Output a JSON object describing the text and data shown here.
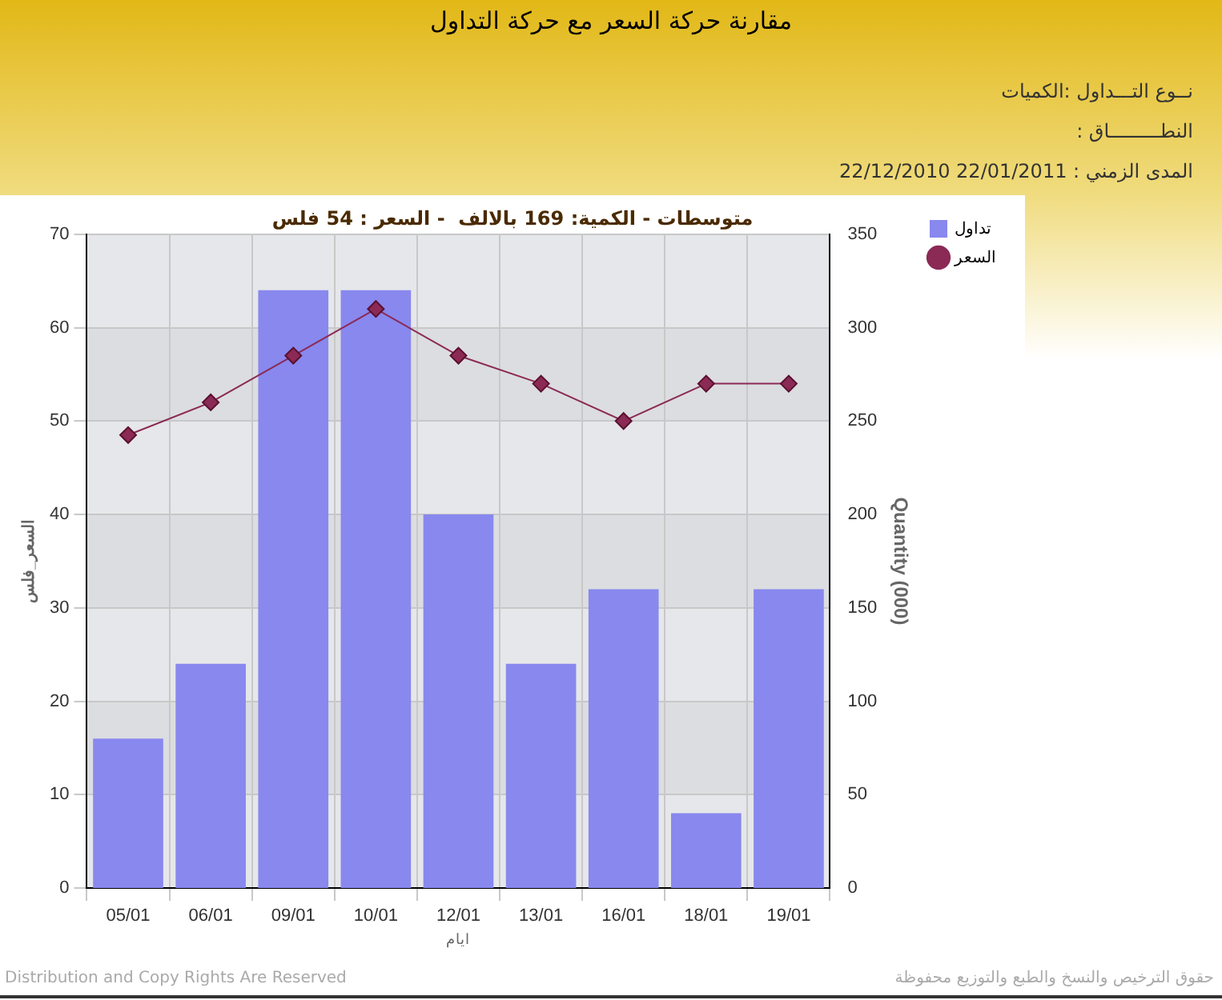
{
  "chart_data": {
    "type": "bar",
    "title": "مقارنة حركة السعر مع حركة التداول",
    "subtitle": "متوسطات - الكمية: 169 بالالف  - السعر : 54 فلس",
    "annotations": [
      "نــوع التـــداول :الكميات",
      "النطـــــــــاق :",
      "المدى الزمني :  22/01/2011 22/12/2010",
      "Distribution and Copy Rights Are Reserved",
      "حقوق الترخيص والنسخ والطبع والتوزيع محفوظة"
    ],
    "xlabel": "ايام",
    "ylabel": "السعر_فلس",
    "y2label": "Quantity (000)",
    "categories": [
      "05/01",
      "06/01",
      "09/01",
      "10/01",
      "12/01",
      "13/01",
      "16/01",
      "18/01",
      "19/01"
    ],
    "series": [
      {
        "name": "تداول",
        "axis": "y2",
        "color": "#8888ee",
        "values": [
          80,
          120,
          320,
          320,
          200,
          120,
          160,
          40,
          160
        ]
      },
      {
        "name": "السعر",
        "type": "line",
        "axis": "y",
        "color": "#8b2a55",
        "marker": "diamond",
        "values": [
          48.5,
          52,
          57,
          62,
          57,
          54,
          50,
          54,
          54
        ]
      }
    ],
    "ylim": [
      0,
      70
    ],
    "yticks": [
      0,
      10,
      20,
      30,
      40,
      50,
      60,
      70
    ],
    "y2lim": [
      0,
      350
    ],
    "y2ticks": [
      0,
      50,
      100,
      150,
      200,
      250,
      300,
      350
    ],
    "grid": true,
    "legend": "top right"
  }
}
